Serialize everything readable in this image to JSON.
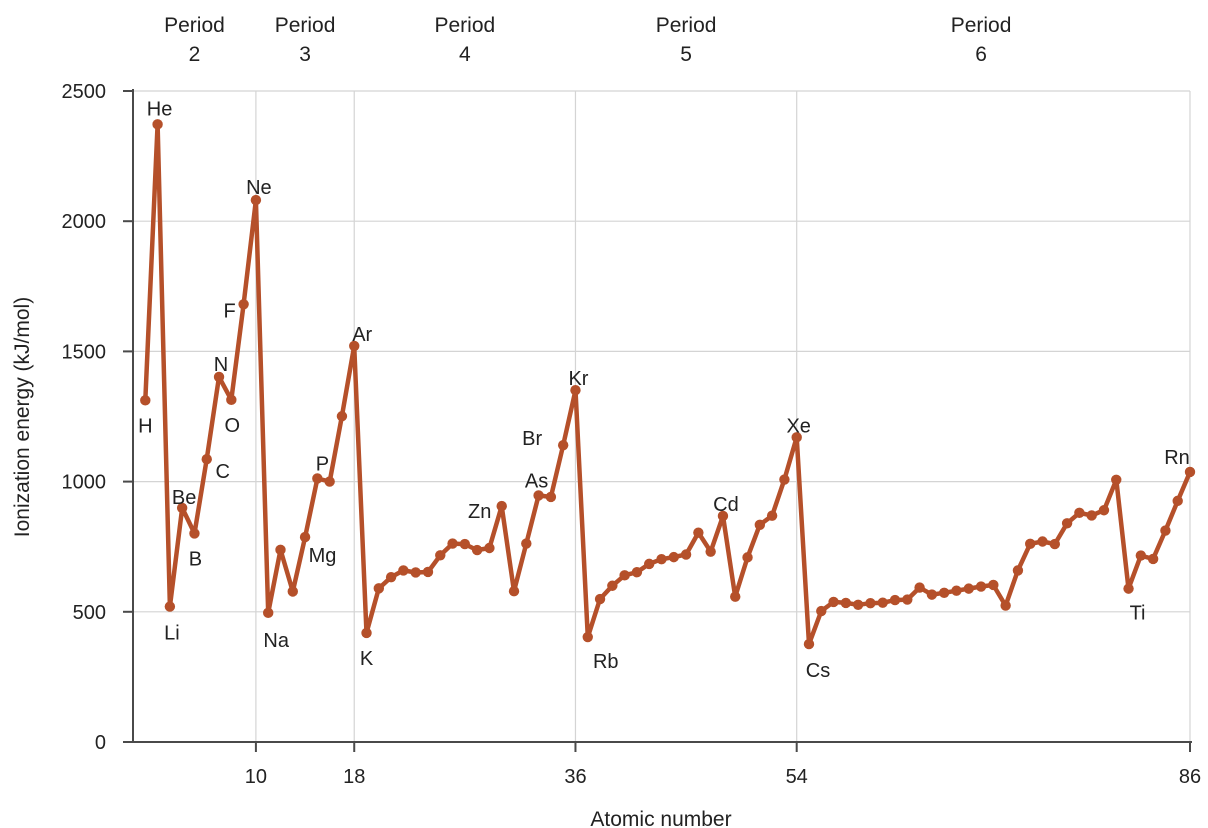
{
  "chart_data": {
    "type": "line",
    "xlabel": "Atomic number",
    "ylabel": "Ionization energy (kJ/mol)",
    "xlim": [
      0,
      86
    ],
    "ylim": [
      0,
      2500
    ],
    "grid": true,
    "color": "#b5502a",
    "yticks": [
      0,
      500,
      1000,
      1500,
      2000,
      2500
    ],
    "xticks": [
      10,
      18,
      36,
      54,
      86
    ],
    "period_labels": [
      {
        "line1": "Period",
        "line2": "2",
        "x": 5
      },
      {
        "line1": "Period",
        "line2": "3",
        "x": 14
      },
      {
        "line1": "Period",
        "line2": "4",
        "x": 27
      },
      {
        "line1": "Period",
        "line2": "5",
        "x": 45
      },
      {
        "line1": "Period",
        "line2": "6",
        "x": 69
      }
    ],
    "x": [
      1,
      2,
      3,
      4,
      5,
      6,
      7,
      8,
      9,
      10,
      11,
      12,
      13,
      14,
      15,
      16,
      17,
      18,
      19,
      20,
      21,
      22,
      23,
      24,
      25,
      26,
      27,
      28,
      29,
      30,
      31,
      32,
      33,
      34,
      35,
      36,
      37,
      38,
      39,
      40,
      41,
      42,
      43,
      44,
      45,
      46,
      47,
      48,
      49,
      50,
      51,
      52,
      53,
      54,
      55,
      56,
      57,
      58,
      59,
      60,
      61,
      62,
      63,
      64,
      65,
      66,
      67,
      68,
      69,
      70,
      71,
      72,
      73,
      74,
      75,
      76,
      77,
      78,
      79,
      80,
      81,
      82,
      83,
      84,
      85,
      86
    ],
    "values": [
      1312,
      2372,
      520,
      899,
      801,
      1086,
      1402,
      1314,
      1681,
      2081,
      496,
      738,
      578,
      787,
      1012,
      1000,
      1251,
      1521,
      419,
      590,
      633,
      659,
      651,
      653,
      717,
      762,
      760,
      737,
      745,
      906,
      579,
      762,
      947,
      941,
      1140,
      1351,
      403,
      549,
      600,
      640,
      652,
      684,
      702,
      710,
      720,
      804,
      731,
      868,
      558,
      709,
      834,
      869,
      1008,
      1170,
      376,
      503,
      538,
      534,
      527,
      533,
      535,
      545,
      547,
      593,
      566,
      573,
      581,
      589,
      597,
      603,
      524,
      659,
      761,
      770,
      760,
      840,
      880,
      870,
      890,
      1007,
      589,
      716,
      703,
      812,
      926,
      1037
    ],
    "labels": [
      {
        "text": "H",
        "x": 1,
        "y": 1312
      },
      {
        "text": "He",
        "x": 2,
        "y": 2372
      },
      {
        "text": "Li",
        "x": 3,
        "y": 520
      },
      {
        "text": "Be",
        "x": 4,
        "y": 899
      },
      {
        "text": "B",
        "x": 5,
        "y": 801
      },
      {
        "text": "C",
        "x": 6,
        "y": 1086
      },
      {
        "text": "N",
        "x": 7,
        "y": 1402
      },
      {
        "text": "O",
        "x": 8,
        "y": 1314
      },
      {
        "text": "F",
        "x": 9,
        "y": 1681
      },
      {
        "text": "Ne",
        "x": 10,
        "y": 2081
      },
      {
        "text": "Na",
        "x": 11,
        "y": 496
      },
      {
        "text": "Mg",
        "x": 12,
        "y": 738
      },
      {
        "text": "P",
        "x": 15,
        "y": 1012
      },
      {
        "text": "Ar",
        "x": 18,
        "y": 1521
      },
      {
        "text": "K",
        "x": 19,
        "y": 419
      },
      {
        "text": "Zn",
        "x": 30,
        "y": 906
      },
      {
        "text": "As",
        "x": 33,
        "y": 947
      },
      {
        "text": "Br",
        "x": 35,
        "y": 1140
      },
      {
        "text": "Kr",
        "x": 36,
        "y": 1351
      },
      {
        "text": "Rb",
        "x": 37,
        "y": 403
      },
      {
        "text": "Cd",
        "x": 48,
        "y": 868
      },
      {
        "text": "Xe",
        "x": 54,
        "y": 1170
      },
      {
        "text": "Cs",
        "x": 55,
        "y": 376
      },
      {
        "text": "Ti",
        "x": 81,
        "y": 589
      },
      {
        "text": "Rn",
        "x": 86,
        "y": 1037
      }
    ]
  }
}
